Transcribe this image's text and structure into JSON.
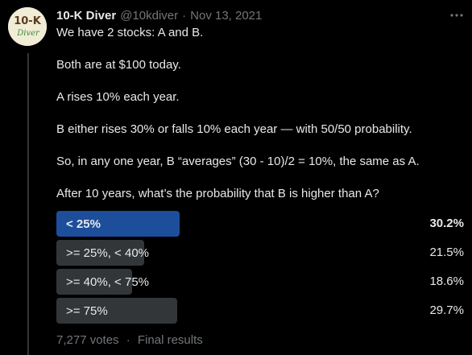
{
  "tweet": {
    "author_name": "10-K Diver",
    "handle": "@10kdiver",
    "separator": "·",
    "date": "Nov 13, 2021",
    "avatar": {
      "line1": "10-K",
      "line2": "Diver",
      "accent": "#3b8b3b"
    },
    "paragraphs": [
      "We have 2 stocks: A and B.",
      "Both are at $100 today.",
      "A rises 10% each year.",
      "B either rises 30% or falls 10% each year — with 50/50 probability.",
      "So, in any one year, B “averages” (30 - 10)/2 = 10%, the same as A.",
      "After 10 years, what’s the probability that B is higher than A?"
    ]
  },
  "poll": {
    "options": [
      {
        "label": "< 25%",
        "percent": "30.2%",
        "value": 30.2,
        "winner": true
      },
      {
        "label": ">= 25%, < 40%",
        "percent": "21.5%",
        "value": 21.5,
        "winner": false
      },
      {
        "label": ">= 40%, < 75%",
        "percent": "18.6%",
        "value": 18.6,
        "winner": false
      },
      {
        "label": ">= 75%",
        "percent": "29.7%",
        "value": 29.7,
        "winner": false
      }
    ],
    "votes": "7,277 votes",
    "footer_separator": "·",
    "status": "Final results"
  },
  "colors": {
    "background": "#000000",
    "winner_bar": "#1d4e9b",
    "other_bar": "#333639",
    "muted_text": "#71767b"
  }
}
